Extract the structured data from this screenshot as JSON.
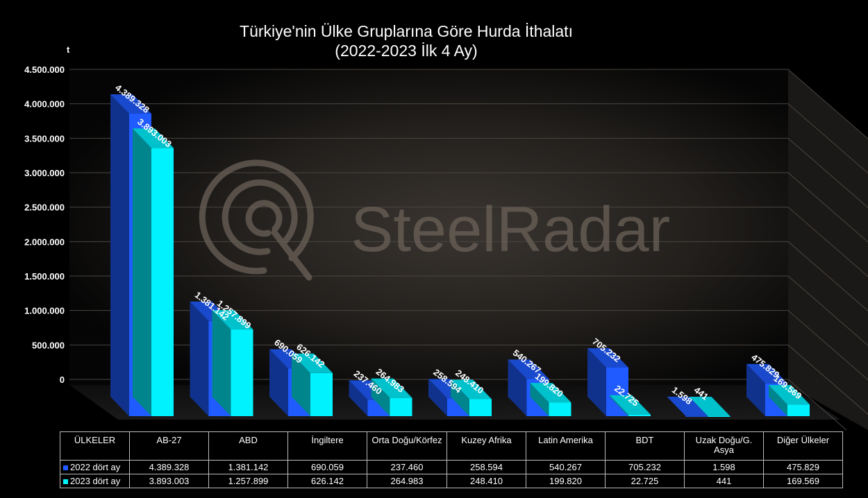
{
  "chart_data": {
    "type": "bar",
    "title": "Türkiye'nin Ülke Gruplarına Göre Hurda İthalatı",
    "subtitle": "(2022-2023 İlk 4 Ay)",
    "ylabel": "t",
    "ylim": [
      0,
      4500000
    ],
    "yticks": [
      "4.500.000",
      "4.000.000",
      "3.500.000",
      "3.000.000",
      "2.500.000",
      "2.000.000",
      "1.500.000",
      "1.000.000",
      "500.000",
      "0"
    ],
    "grid": true,
    "legend": "table",
    "categories": [
      "AB-27",
      "ABD",
      "İngiltere",
      "Orta Doğu/Körfez",
      "Kuzey Afrika",
      "Latin Amerika",
      "BDT",
      "Uzak Doğu/G. Asya",
      "Diğer Ülkeler"
    ],
    "series": [
      {
        "name": "2022 dört ay",
        "color": "#1f5bff",
        "values": [
          4389328,
          1381142,
          690059,
          237460,
          258594,
          540267,
          705232,
          1598,
          475829
        ],
        "labels": [
          "4.389.328",
          "1.381.142",
          "690.059",
          "237.460",
          "258.594",
          "540.267",
          "705.232",
          "1.598",
          "475.829"
        ]
      },
      {
        "name": "2023 dört ay",
        "color": "#00f2ff",
        "values": [
          3893003,
          1257899,
          626142,
          264983,
          248410,
          199820,
          22725,
          441,
          169569
        ],
        "labels": [
          "3.893.003",
          "1.257.899",
          "626.142",
          "264.983",
          "248.410",
          "199.820",
          "22.725",
          "441",
          "169.569"
        ]
      }
    ]
  },
  "table": {
    "header_label": "ÜLKELER",
    "columns": [
      "AB-27",
      "ABD",
      "İngiltere",
      "Orta Doğu/Körfez",
      "Kuzey Afrika",
      "Latin Amerika",
      "BDT",
      "Uzak Doğu/G. Asya",
      "Diğer Ülkeler"
    ],
    "rows": [
      {
        "label": "2022 dört ay",
        "color": "#1f5bff",
        "values": [
          "4.389.328",
          "1.381.142",
          "690.059",
          "237.460",
          "258.594",
          "540.267",
          "705.232",
          "1.598",
          "475.829"
        ]
      },
      {
        "label": "2023 dört ay",
        "color": "#00f2ff",
        "values": [
          "3.893.003",
          "1.257.899",
          "626.142",
          "264.983",
          "248.410",
          "199.820",
          "22.725",
          "441",
          "169.569"
        ]
      }
    ]
  },
  "watermark": {
    "text": "SteelRadar"
  }
}
